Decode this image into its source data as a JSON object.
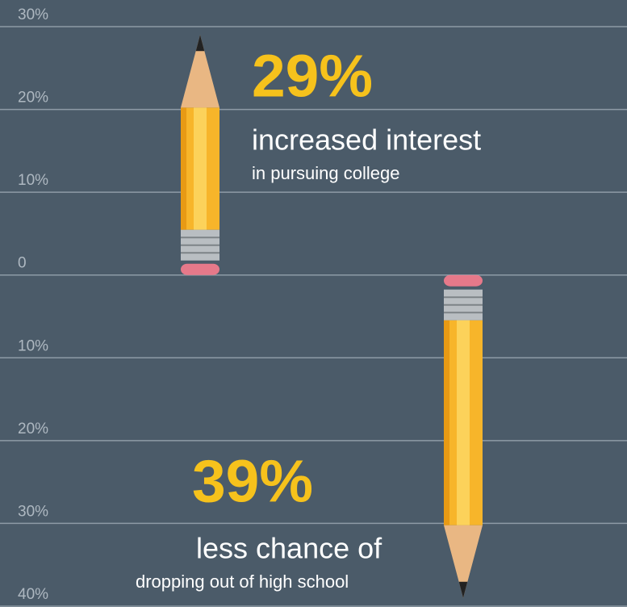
{
  "chart_data": {
    "type": "bar",
    "values": [
      29,
      -39
    ],
    "value_labels": [
      "29%",
      "39%"
    ],
    "descriptions": [
      [
        "increased interest",
        "in pursuing college"
      ],
      [
        "less chance of",
        "dropping out of high school"
      ]
    ],
    "color": "#f7b52a",
    "label_color": "#f6c21c",
    "ylim": [
      -40,
      30
    ],
    "yticks": [
      {
        "value": 30,
        "label": "30%"
      },
      {
        "value": 20,
        "label": "20%"
      },
      {
        "value": 10,
        "label": "10%"
      },
      0,
      {
        "value": -10,
        "label": "10%"
      },
      {
        "value": -20,
        "label": "20%"
      },
      {
        "value": -30,
        "label": "30%"
      },
      {
        "value": -40,
        "label": "40%"
      }
    ],
    "grid": true
  }
}
